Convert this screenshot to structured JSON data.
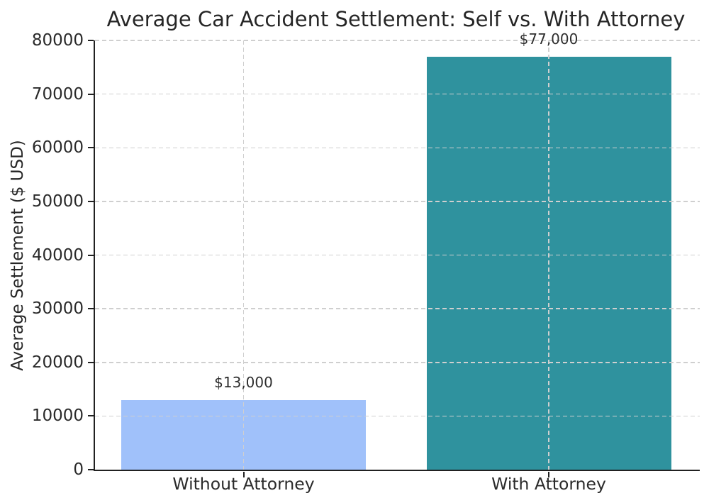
{
  "chart_data": {
    "type": "bar",
    "title": "Average Car Accident Settlement: Self vs. With Attorney",
    "ylabel": "Average Settlement ($ USD)",
    "xlabel": "",
    "categories": [
      "Without Attorney",
      "With Attorney"
    ],
    "values": [
      13000,
      77000
    ],
    "value_labels": [
      "$13,000",
      "$77,000"
    ],
    "bar_colors": [
      "#a0c1fa",
      "#2f929e"
    ],
    "ylim": [
      0,
      80000
    ],
    "yticks": [
      0,
      10000,
      20000,
      30000,
      40000,
      50000,
      60000,
      70000,
      80000
    ],
    "ytick_labels": [
      "0",
      "10000",
      "20000",
      "30000",
      "40000",
      "50000",
      "60000",
      "70000",
      "80000"
    ],
    "grid": {
      "horizontal": true,
      "vertical_at_bar_centers": true,
      "style": "dashed",
      "color": "#cfcfcf",
      "drawn_above_bars": true
    },
    "legend": null,
    "background": "#ffffff",
    "text_color": "#2a2a2a"
  }
}
